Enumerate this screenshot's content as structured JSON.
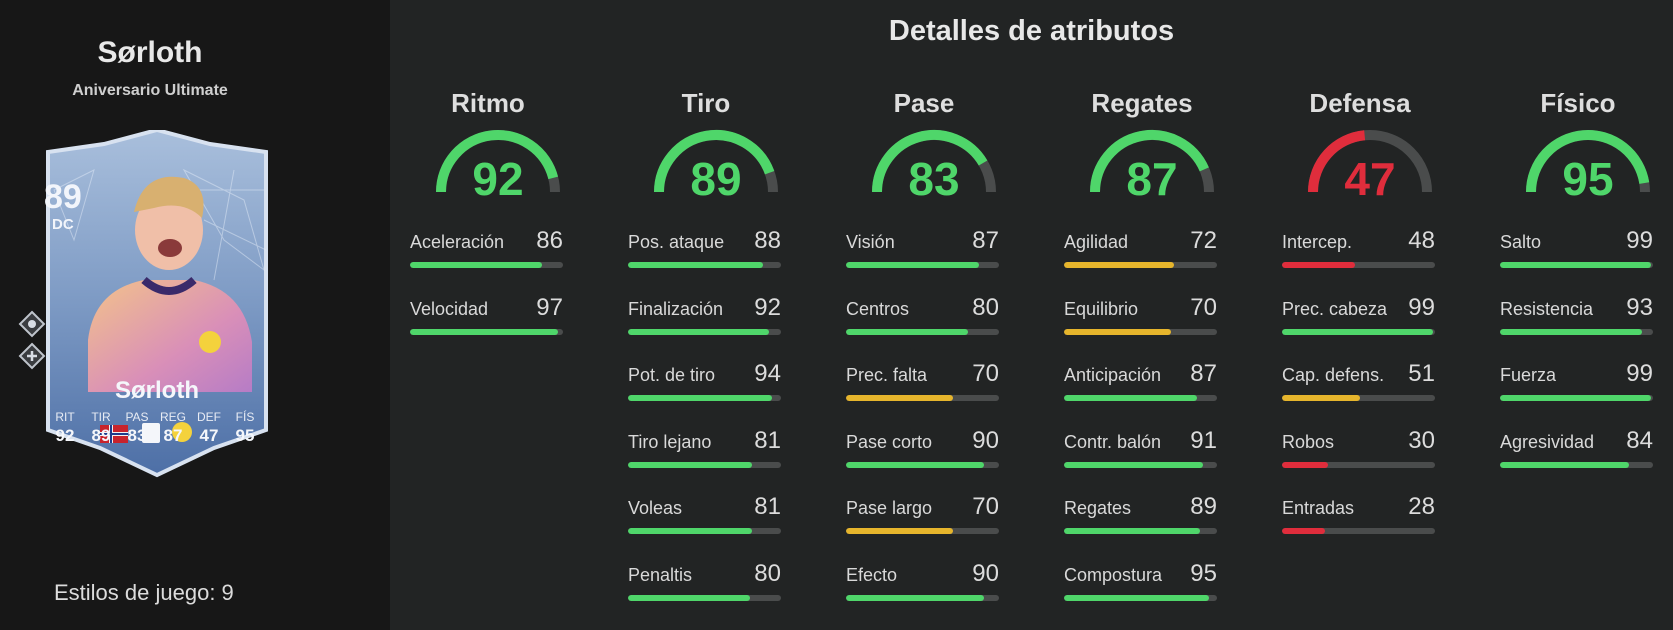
{
  "player": {
    "name": "Sørloth",
    "edition": "Aniversario Ultimate",
    "playstyles": "Estilos de juego: 9"
  },
  "card": {
    "rating": "89",
    "position": "DC",
    "name": "Sørloth",
    "stats": [
      {
        "label": "RIT",
        "value": "92"
      },
      {
        "label": "TIR",
        "value": "89"
      },
      {
        "label": "PAS",
        "value": "83"
      },
      {
        "label": "REG",
        "value": "87"
      },
      {
        "label": "DEF",
        "value": "47"
      },
      {
        "label": "FÍS",
        "value": "95"
      }
    ]
  },
  "title": "Detalles de atributos",
  "colors": {
    "green": "#4fd66a",
    "yellow": "#e6b52c",
    "red": "#e02d3c",
    "track": "#4a4c4c"
  },
  "categories": [
    {
      "name": "Ritmo",
      "value": 92,
      "attrs": [
        {
          "name": "Aceleración",
          "value": 86
        },
        {
          "name": "Velocidad",
          "value": 97
        }
      ]
    },
    {
      "name": "Tiro",
      "value": 89,
      "attrs": [
        {
          "name": "Pos. ataque",
          "value": 88
        },
        {
          "name": "Finalización",
          "value": 92
        },
        {
          "name": "Pot. de tiro",
          "value": 94
        },
        {
          "name": "Tiro lejano",
          "value": 81
        },
        {
          "name": "Voleas",
          "value": 81
        },
        {
          "name": "Penaltis",
          "value": 80
        }
      ]
    },
    {
      "name": "Pase",
      "value": 83,
      "attrs": [
        {
          "name": "Visión",
          "value": 87
        },
        {
          "name": "Centros",
          "value": 80
        },
        {
          "name": "Prec. falta",
          "value": 70
        },
        {
          "name": "Pase corto",
          "value": 90
        },
        {
          "name": "Pase largo",
          "value": 70
        },
        {
          "name": "Efecto",
          "value": 90
        }
      ]
    },
    {
      "name": "Regates",
      "value": 87,
      "attrs": [
        {
          "name": "Agilidad",
          "value": 72
        },
        {
          "name": "Equilibrio",
          "value": 70
        },
        {
          "name": "Anticipación",
          "value": 87
        },
        {
          "name": "Contr. balón",
          "value": 91
        },
        {
          "name": "Regates",
          "value": 89
        },
        {
          "name": "Compostura",
          "value": 95
        }
      ]
    },
    {
      "name": "Defensa",
      "value": 47,
      "attrs": [
        {
          "name": "Intercep.",
          "value": 48
        },
        {
          "name": "Prec. cabeza",
          "value": 99
        },
        {
          "name": "Cap. defens.",
          "value": 51
        },
        {
          "name": "Robos",
          "value": 30
        },
        {
          "name": "Entradas",
          "value": 28
        }
      ]
    },
    {
      "name": "Físico",
      "value": 95,
      "attrs": [
        {
          "name": "Salto",
          "value": 99
        },
        {
          "name": "Resistencia",
          "value": 93
        },
        {
          "name": "Fuerza",
          "value": 99
        },
        {
          "name": "Agresividad",
          "value": 84
        }
      ]
    }
  ]
}
